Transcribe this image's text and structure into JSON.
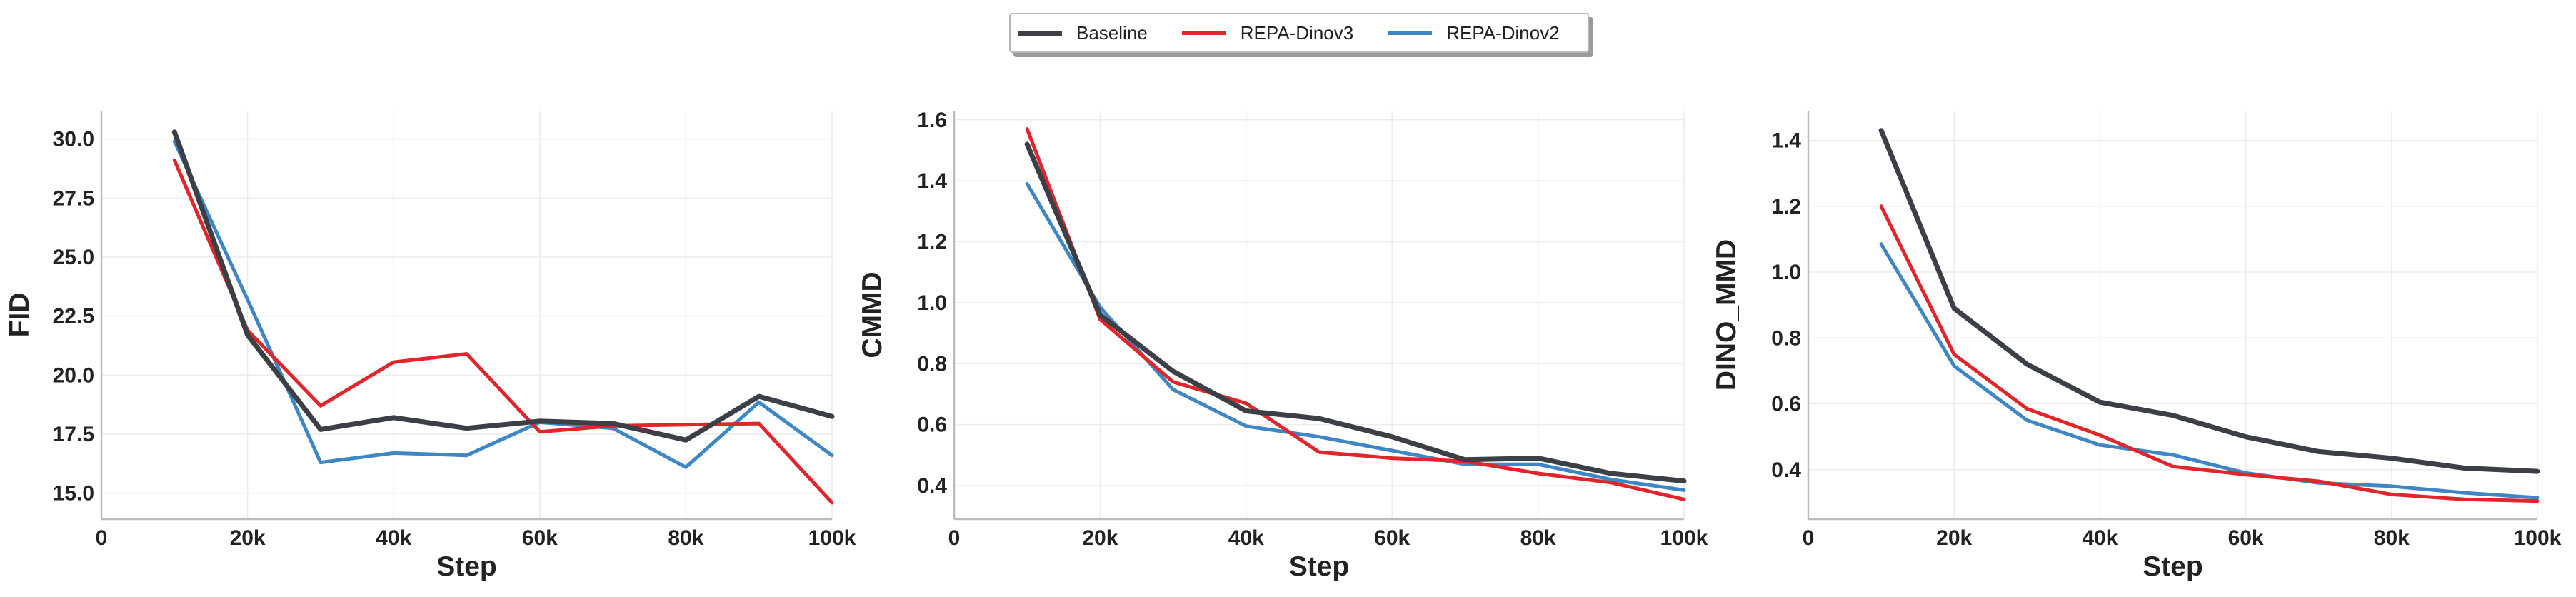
{
  "legend": {
    "entries": [
      {
        "label": "Baseline",
        "color": "#3d3f47",
        "width": 7
      },
      {
        "label": "REPA-Dinov3",
        "color": "#e0262b",
        "width": 5
      },
      {
        "label": "REPA-Dinov2",
        "color": "#3f86c4",
        "width": 5
      }
    ]
  },
  "chart_data": [
    {
      "type": "line",
      "xlabel": "Step",
      "ylabel": "FID",
      "xlim": [
        0,
        100000
      ],
      "ylim": [
        13.9,
        31.2
      ],
      "xticks": [
        0,
        20000,
        40000,
        60000,
        80000,
        100000
      ],
      "xtick_labels": [
        "0",
        "20k",
        "40k",
        "60k",
        "80k",
        "100k"
      ],
      "yticks": [
        15.0,
        17.5,
        20.0,
        22.5,
        25.0,
        27.5,
        30.0
      ],
      "ytick_labels": [
        "15.0",
        "17.5",
        "20.0",
        "22.5",
        "25.0",
        "27.5",
        "30.0"
      ],
      "grid": true,
      "x": [
        10000,
        20000,
        30000,
        40000,
        50000,
        60000,
        70000,
        80000,
        90000,
        100000
      ],
      "series": [
        {
          "name": "Baseline",
          "values": [
            30.3,
            21.7,
            17.7,
            18.2,
            17.75,
            18.05,
            17.95,
            17.25,
            19.1,
            18.25
          ]
        },
        {
          "name": "REPA-Dinov3",
          "values": [
            29.1,
            21.9,
            18.7,
            20.55,
            20.9,
            17.6,
            17.85,
            17.9,
            17.95,
            14.6
          ]
        },
        {
          "name": "REPA-Dinov2",
          "values": [
            29.9,
            23.2,
            16.3,
            16.7,
            16.6,
            18.0,
            17.75,
            16.1,
            18.85,
            16.6
          ]
        }
      ]
    },
    {
      "type": "line",
      "xlabel": "Step",
      "ylabel": "CMMD",
      "xlim": [
        0,
        100000
      ],
      "ylim": [
        0.29,
        1.63
      ],
      "xticks": [
        0,
        20000,
        40000,
        60000,
        80000,
        100000
      ],
      "xtick_labels": [
        "0",
        "20k",
        "40k",
        "60k",
        "80k",
        "100k"
      ],
      "yticks": [
        0.4,
        0.6,
        0.8,
        1.0,
        1.2,
        1.4,
        1.6
      ],
      "ytick_labels": [
        "0.4",
        "0.6",
        "0.8",
        "1.0",
        "1.2",
        "1.4",
        "1.6"
      ],
      "grid": true,
      "x": [
        10000,
        20000,
        30000,
        40000,
        50000,
        60000,
        70000,
        80000,
        90000,
        100000
      ],
      "series": [
        {
          "name": "Baseline",
          "values": [
            1.52,
            0.96,
            0.775,
            0.645,
            0.62,
            0.56,
            0.485,
            0.49,
            0.44,
            0.415
          ]
        },
        {
          "name": "REPA-Dinov3",
          "values": [
            1.57,
            0.945,
            0.74,
            0.67,
            0.51,
            0.49,
            0.48,
            0.44,
            0.41,
            0.355
          ]
        },
        {
          "name": "REPA-Dinov2",
          "values": [
            1.39,
            0.985,
            0.715,
            0.595,
            0.56,
            0.515,
            0.47,
            0.47,
            0.42,
            0.385
          ]
        }
      ]
    },
    {
      "type": "line",
      "xlabel": "Step",
      "ylabel": "DINO_MMD",
      "xlim": [
        0,
        100000
      ],
      "ylim": [
        0.25,
        1.49
      ],
      "xticks": [
        0,
        20000,
        40000,
        60000,
        80000,
        100000
      ],
      "xtick_labels": [
        "0",
        "20k",
        "40k",
        "60k",
        "80k",
        "100k"
      ],
      "yticks": [
        0.4,
        0.6,
        0.8,
        1.0,
        1.2,
        1.4
      ],
      "ytick_labels": [
        "0.4",
        "0.6",
        "0.8",
        "1.0",
        "1.2",
        "1.4"
      ],
      "grid": true,
      "x": [
        10000,
        20000,
        30000,
        40000,
        50000,
        60000,
        70000,
        80000,
        90000,
        100000
      ],
      "series": [
        {
          "name": "Baseline",
          "values": [
            1.43,
            0.89,
            0.72,
            0.605,
            0.565,
            0.5,
            0.455,
            0.435,
            0.405,
            0.395
          ]
        },
        {
          "name": "REPA-Dinov3",
          "values": [
            1.2,
            0.75,
            0.585,
            0.505,
            0.41,
            0.385,
            0.365,
            0.325,
            0.31,
            0.305
          ]
        },
        {
          "name": "REPA-Dinov2",
          "values": [
            1.085,
            0.715,
            0.55,
            0.475,
            0.445,
            0.39,
            0.36,
            0.35,
            0.33,
            0.315
          ]
        }
      ]
    }
  ]
}
